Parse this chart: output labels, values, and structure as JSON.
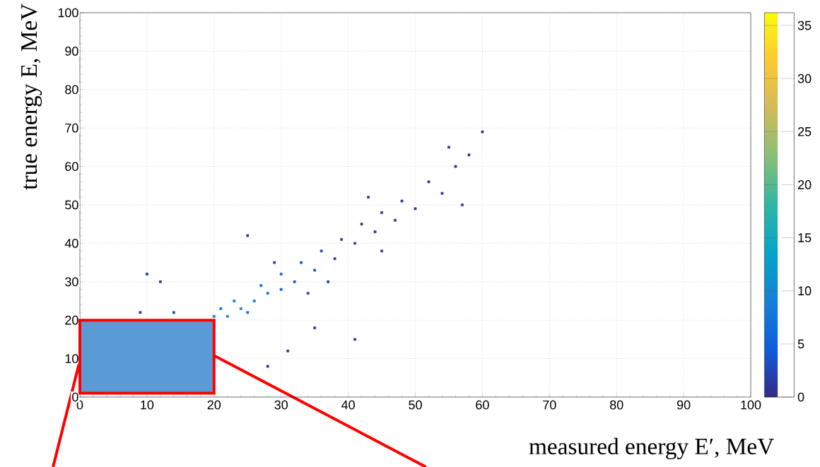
{
  "chart_data": {
    "type": "scatter",
    "xlabel": "measured energy E′, MeV",
    "ylabel": "true energy E, MeV",
    "x": [
      20,
      22,
      24,
      26,
      28,
      21,
      23,
      25,
      27,
      30,
      30,
      32,
      33,
      35,
      36,
      38,
      39,
      41,
      42,
      44,
      45,
      47,
      48,
      50,
      52,
      54,
      56,
      55,
      58,
      57,
      60,
      14,
      12,
      9,
      25,
      35,
      28,
      31,
      41,
      10,
      29,
      34,
      37,
      45,
      43
    ],
    "values": [
      21,
      21,
      23,
      25,
      27,
      23,
      25,
      22,
      29,
      28,
      32,
      30,
      35,
      33,
      38,
      36,
      41,
      40,
      45,
      43,
      48,
      46,
      51,
      49,
      56,
      53,
      60,
      65,
      63,
      50,
      69,
      22,
      30,
      22,
      42,
      18,
      8,
      12,
      15,
      32,
      35,
      27,
      30,
      38,
      52
    ],
    "cvalues": [
      8,
      9,
      9,
      8,
      7,
      7,
      8,
      7,
      6,
      5,
      5,
      4,
      4,
      3,
      3,
      2,
      2,
      2,
      1,
      1,
      1,
      1,
      1,
      1,
      1,
      1,
      1,
      1,
      1,
      1,
      1,
      2,
      1,
      1,
      1,
      1,
      1,
      1,
      1,
      1,
      2,
      2,
      1,
      1,
      1
    ],
    "xlim": [
      0,
      100
    ],
    "ylim": [
      0,
      100
    ],
    "xticks": [
      0,
      10,
      20,
      30,
      40,
      50,
      60,
      70,
      80,
      90,
      100
    ],
    "yticks": [
      0,
      10,
      20,
      30,
      40,
      50,
      60,
      70,
      80,
      90,
      100
    ],
    "clim": [
      0,
      36.2
    ],
    "cticks": [
      0,
      5,
      10,
      15,
      20,
      25,
      30,
      35
    ],
    "grid": true,
    "marker": "square"
  }
}
